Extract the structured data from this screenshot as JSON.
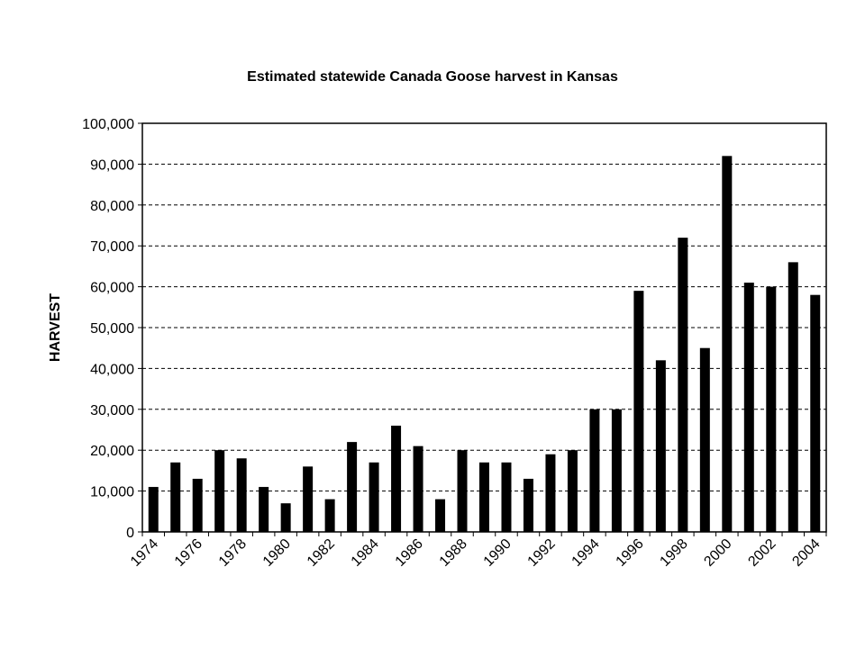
{
  "chart_data": {
    "type": "bar",
    "title": "Estimated statewide Canada Goose harvest in Kansas",
    "xlabel": "",
    "ylabel": "HARVEST",
    "ylim": [
      0,
      100000
    ],
    "yticks": [
      0,
      10000,
      20000,
      30000,
      40000,
      50000,
      60000,
      70000,
      80000,
      90000,
      100000
    ],
    "ytick_labels": [
      "0",
      "10,000",
      "20,000",
      "30,000",
      "40,000",
      "50,000",
      "60,000",
      "70,000",
      "80,000",
      "90,000",
      "100,000"
    ],
    "grid": "horizontal dashed",
    "legend": "none",
    "categories": [
      "1974",
      "1975",
      "1976",
      "1977",
      "1978",
      "1979",
      "1980",
      "1981",
      "1982",
      "1983",
      "1984",
      "1985",
      "1986",
      "1987",
      "1988",
      "1989",
      "1990",
      "1991",
      "1992",
      "1993",
      "1994",
      "1995",
      "1996",
      "1997",
      "1998",
      "1999",
      "2000",
      "2001",
      "2002",
      "2003",
      "2004"
    ],
    "xtick_labels_shown": [
      "1974",
      "1976",
      "1978",
      "1980",
      "1982",
      "1984",
      "1986",
      "1988",
      "1990",
      "1992",
      "1994",
      "1996",
      "1998",
      "2000",
      "2002",
      "2004"
    ],
    "values": [
      11000,
      17000,
      13000,
      20000,
      18000,
      11000,
      7000,
      16000,
      8000,
      22000,
      17000,
      26000,
      21000,
      8000,
      20000,
      17000,
      17000,
      13000,
      19000,
      20000,
      30000,
      30000,
      59000,
      42000,
      72000,
      45000,
      92000,
      61000,
      60000,
      66000,
      58000
    ],
    "bar_color": "#000000"
  }
}
